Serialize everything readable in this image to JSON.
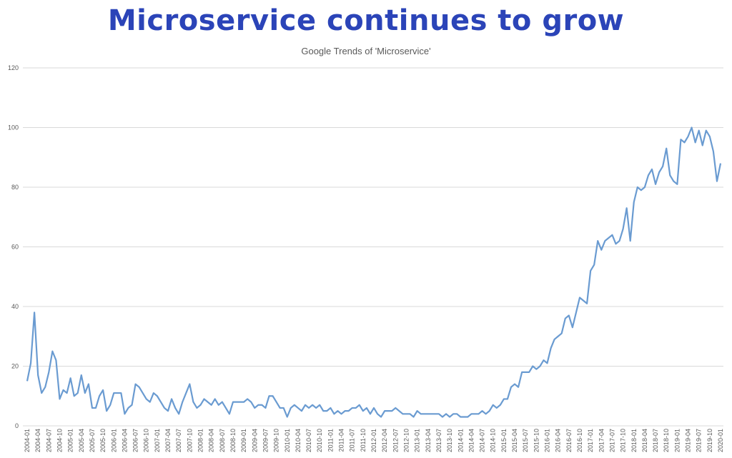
{
  "title": "Microservice continues to grow",
  "title_color": "#2b44b8",
  "chart_data": {
    "type": "line",
    "title": "Google Trends of 'Microservice'",
    "xlabel": "",
    "ylabel": "",
    "x_range": [
      "2004-01",
      "2020-01"
    ],
    "x_frequency": "monthly",
    "ylim": [
      0,
      120
    ],
    "y_ticks": [
      0,
      20,
      40,
      60,
      80,
      100,
      120
    ],
    "grid": "horizontal",
    "legend": "none",
    "line_color": "#6a9bd1",
    "x_tick_labels": [
      "2004-01",
      "2004-04",
      "2004-07",
      "2004-10",
      "2005-01",
      "2005-04",
      "2005-07",
      "2005-10",
      "2006-01",
      "2006-04",
      "2006-07",
      "2006-10",
      "2007-01",
      "2007-04",
      "2007-07",
      "2007-10",
      "2008-01",
      "2008-04",
      "2008-07",
      "2008-10",
      "2009-01",
      "2009-04",
      "2009-07",
      "2009-10",
      "2010-01",
      "2010-04",
      "2010-07",
      "2010-10",
      "2011-01",
      "2011-04",
      "2011-07",
      "2011-10",
      "2012-01",
      "2012-04",
      "2012-07",
      "2012-10",
      "2013-01",
      "2013-04",
      "2013-07",
      "2013-10",
      "2014-01",
      "2014-04",
      "2014-07",
      "2014-10",
      "2015-01",
      "2015-04",
      "2015-07",
      "2015-10",
      "2016-01",
      "2016-04",
      "2016-07",
      "2016-10",
      "2017-01",
      "2017-04",
      "2017-07",
      "2017-10",
      "2018-01",
      "2018-04",
      "2018-07",
      "2018-10",
      "2019-01",
      "2019-04",
      "2019-07",
      "2019-10",
      "2020-01"
    ],
    "series": [
      {
        "values": [
          15,
          21,
          38,
          17,
          11,
          13,
          18,
          25,
          22,
          9,
          12,
          11,
          16,
          10,
          11,
          17,
          11,
          14,
          6,
          6,
          10,
          12,
          5,
          7,
          11,
          11,
          11,
          4,
          6,
          7,
          14,
          13,
          11,
          9,
          8,
          11,
          10,
          8,
          6,
          5,
          9,
          6,
          4,
          8,
          11,
          14,
          8,
          6,
          7,
          9,
          8,
          7,
          9,
          7,
          8,
          6,
          4,
          8,
          8,
          8,
          8,
          9,
          8,
          6,
          7,
          7,
          6,
          10,
          10,
          8,
          6,
          6,
          3,
          6,
          7,
          6,
          5,
          7,
          6,
          7,
          6,
          7,
          5,
          5,
          6,
          4,
          5,
          4,
          5,
          5,
          6,
          6,
          7,
          5,
          6,
          4,
          6,
          4,
          3,
          5,
          5,
          5,
          6,
          5,
          4,
          4,
          4,
          3,
          5,
          4,
          4,
          4,
          4,
          4,
          4,
          3,
          4,
          3,
          4,
          4,
          3,
          3,
          3,
          4,
          4,
          4,
          5,
          4,
          5,
          7,
          6,
          7,
          9,
          9,
          13,
          14,
          13,
          18,
          18,
          18,
          20,
          19,
          20,
          22,
          21,
          26,
          29,
          30,
          31,
          36,
          37,
          33,
          38,
          43,
          42,
          41,
          52,
          54,
          62,
          59,
          62,
          63,
          64,
          61,
          62,
          66,
          73,
          62,
          75,
          80,
          79,
          80,
          84,
          86,
          81,
          85,
          87,
          93,
          84,
          82,
          81,
          96,
          95,
          97,
          100,
          95,
          99,
          94,
          99,
          97,
          92,
          82,
          88
        ]
      }
    ]
  }
}
